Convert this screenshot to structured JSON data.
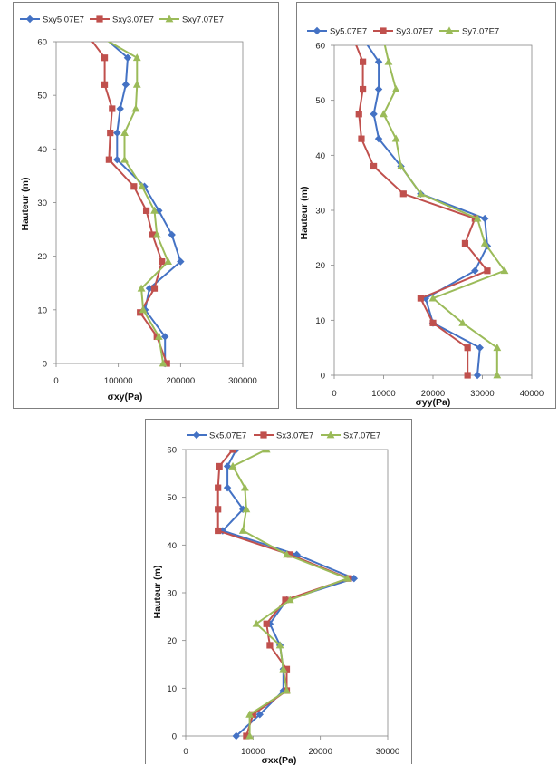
{
  "colors": {
    "blue": "#4472C4",
    "red": "#C0504D",
    "green": "#9BBB59",
    "frame": "#7f7f7f"
  },
  "chart_data": [
    {
      "type": "line",
      "xlabel": "σxy(Pa)",
      "ylabel": "Hauteur (m)",
      "xlim": [
        0,
        300000
      ],
      "ylim": [
        0,
        60
      ],
      "xticks": [
        0,
        100000,
        200000,
        300000
      ],
      "xtick_labels": [
        "0",
        "100000",
        "200000",
        "300000"
      ],
      "yticks": [
        0,
        10,
        20,
        30,
        40,
        50,
        60
      ],
      "ytick_labels": [
        "0",
        "10",
        "20",
        "30",
        "40",
        "50",
        "60"
      ],
      "legend_position": "top",
      "grid": false,
      "series": [
        {
          "name": "Sxy5.07E7",
          "color": "#4472C4",
          "marker": "diamond",
          "points": [
            [
              175000,
              0
            ],
            [
              175000,
              5
            ],
            [
              143000,
              10
            ],
            [
              150000,
              14
            ],
            [
              200000,
              19
            ],
            [
              186000,
              24
            ],
            [
              165000,
              28.5
            ],
            [
              142000,
              33
            ],
            [
              98000,
              38
            ],
            [
              98000,
              43
            ],
            [
              103000,
              47.5
            ],
            [
              112000,
              52
            ],
            [
              115000,
              57
            ],
            [
              75000,
              61
            ]
          ]
        },
        {
          "name": "Sxy3.07E7",
          "color": "#C0504D",
          "marker": "square",
          "points": [
            [
              178000,
              0
            ],
            [
              162000,
              5
            ],
            [
              135000,
              9.5
            ],
            [
              158000,
              14
            ],
            [
              170000,
              19
            ],
            [
              155000,
              24
            ],
            [
              145000,
              28.5
            ],
            [
              125000,
              33
            ],
            [
              85000,
              38
            ],
            [
              87000,
              43
            ],
            [
              90000,
              47.5
            ],
            [
              78000,
              52
            ],
            [
              78000,
              57
            ],
            [
              52000,
              61
            ]
          ]
        },
        {
          "name": "Sxy7.07E7",
          "color": "#9BBB59",
          "marker": "triangle",
          "points": [
            [
              172000,
              0
            ],
            [
              165000,
              5
            ],
            [
              140000,
              10
            ],
            [
              137000,
              14
            ],
            [
              180000,
              19
            ],
            [
              162000,
              24
            ],
            [
              158000,
              28.5
            ],
            [
              138000,
              33
            ],
            [
              110000,
              38
            ],
            [
              110000,
              43
            ],
            [
              128000,
              47.5
            ],
            [
              130000,
              52
            ],
            [
              130000,
              57
            ],
            [
              70000,
              61
            ]
          ]
        }
      ]
    },
    {
      "type": "line",
      "xlabel": "σyy(Pa)",
      "ylabel": "Hauteur (m)",
      "xlim": [
        0,
        40000
      ],
      "ylim": [
        0,
        60
      ],
      "xticks": [
        0,
        10000,
        20000,
        30000,
        40000
      ],
      "xtick_labels": [
        "0",
        "10000",
        "20000",
        "30000",
        "40000"
      ],
      "yticks": [
        0,
        10,
        20,
        30,
        40,
        50,
        60
      ],
      "ytick_labels": [
        "0",
        "10",
        "20",
        "30",
        "40",
        "50",
        "60"
      ],
      "legend_position": "top",
      "grid": false,
      "series": [
        {
          "name": "Sy5.07E7",
          "color": "#4472C4",
          "marker": "diamond",
          "points": [
            [
              29000,
              0
            ],
            [
              29500,
              5
            ],
            [
              20000,
              9.5
            ],
            [
              18500,
              14
            ],
            [
              28500,
              19
            ],
            [
              31000,
              23.5
            ],
            [
              30500,
              28.5
            ],
            [
              17500,
              33
            ],
            [
              13500,
              38
            ],
            [
              9000,
              43
            ],
            [
              8000,
              47.5
            ],
            [
              9000,
              52
            ],
            [
              9000,
              57
            ],
            [
              6000,
              61
            ]
          ]
        },
        {
          "name": "Sy3.07E7",
          "color": "#C0504D",
          "marker": "square",
          "points": [
            [
              27000,
              0
            ],
            [
              27000,
              5
            ],
            [
              20000,
              9.5
            ],
            [
              17500,
              14
            ],
            [
              31000,
              19
            ],
            [
              26500,
              24
            ],
            [
              28500,
              28.5
            ],
            [
              14000,
              33
            ],
            [
              8000,
              38
            ],
            [
              5500,
              43
            ],
            [
              5000,
              47.5
            ],
            [
              5800,
              52
            ],
            [
              5800,
              57
            ],
            [
              4000,
              61
            ]
          ]
        },
        {
          "name": "Sy7.07E7",
          "color": "#9BBB59",
          "marker": "triangle",
          "points": [
            [
              33000,
              0
            ],
            [
              33000,
              5
            ],
            [
              26000,
              9.5
            ],
            [
              20000,
              14
            ],
            [
              34500,
              19
            ],
            [
              30500,
              24
            ],
            [
              29000,
              28.5
            ],
            [
              17500,
              33
            ],
            [
              13500,
              38
            ],
            [
              12500,
              43
            ],
            [
              10000,
              47.5
            ],
            [
              12500,
              52
            ],
            [
              11000,
              57
            ],
            [
              10000,
              61
            ]
          ]
        }
      ]
    },
    {
      "type": "line",
      "xlabel": "σxx(Pa)",
      "ylabel": "Hauteur (m)",
      "xlim": [
        0,
        30000
      ],
      "ylim": [
        0,
        60
      ],
      "xticks": [
        0,
        10000,
        20000,
        30000
      ],
      "xtick_labels": [
        "0",
        "10000",
        "20000",
        "30000"
      ],
      "yticks": [
        0,
        10,
        20,
        30,
        40,
        50,
        60
      ],
      "ytick_labels": [
        "0",
        "10",
        "20",
        "30",
        "40",
        "50",
        "60"
      ],
      "legend_position": "top",
      "grid": false,
      "series": [
        {
          "name": "Sx5.07E7",
          "color": "#4472C4",
          "marker": "diamond",
          "points": [
            [
              7500,
              0
            ],
            [
              11000,
              4.5
            ],
            [
              14500,
              9.5
            ],
            [
              14500,
              14
            ],
            [
              14000,
              19
            ],
            [
              12500,
              23.5
            ],
            [
              15000,
              28.5
            ],
            [
              25000,
              33
            ],
            [
              16500,
              38
            ],
            [
              5500,
              43
            ],
            [
              8500,
              47.5
            ],
            [
              6200,
              52
            ],
            [
              6200,
              56.5
            ],
            [
              7500,
              60
            ]
          ]
        },
        {
          "name": "Sx3.07E7",
          "color": "#C0504D",
          "marker": "square",
          "points": [
            [
              9000,
              0
            ],
            [
              10000,
              4.5
            ],
            [
              15000,
              9.5
            ],
            [
              15000,
              14
            ],
            [
              12500,
              19
            ],
            [
              12000,
              23.5
            ],
            [
              14800,
              28.5
            ],
            [
              24200,
              33
            ],
            [
              15500,
              38
            ],
            [
              4800,
              43
            ],
            [
              4800,
              47.5
            ],
            [
              4800,
              52
            ],
            [
              5000,
              56.5
            ],
            [
              7000,
              60
            ]
          ]
        },
        {
          "name": "Sx7.07E7",
          "color": "#9BBB59",
          "marker": "triangle",
          "points": [
            [
              9500,
              0
            ],
            [
              9500,
              4.5
            ],
            [
              15000,
              9.5
            ],
            [
              14500,
              14
            ],
            [
              14000,
              19
            ],
            [
              10500,
              23.5
            ],
            [
              15500,
              28.5
            ],
            [
              24000,
              33
            ],
            [
              15000,
              38
            ],
            [
              8500,
              43
            ],
            [
              9000,
              47.5
            ],
            [
              8800,
              52
            ],
            [
              7000,
              56.5
            ],
            [
              12000,
              60
            ]
          ]
        }
      ]
    }
  ]
}
